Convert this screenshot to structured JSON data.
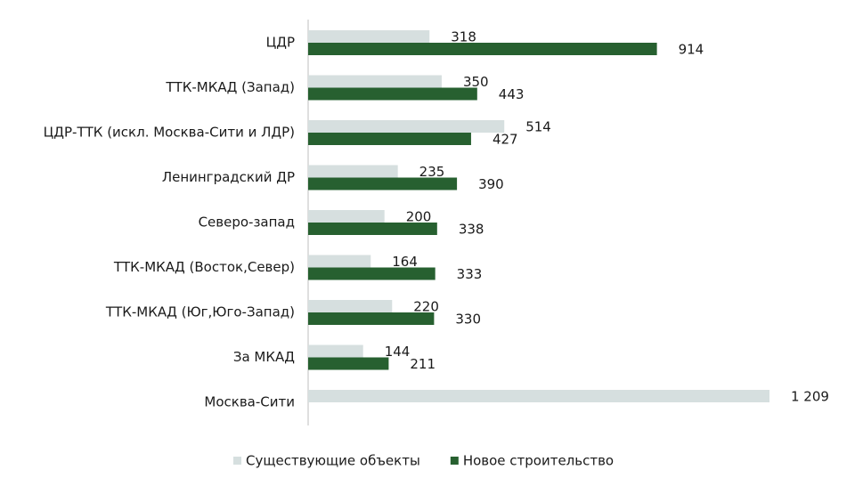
{
  "chart_data": {
    "type": "hbar",
    "categories": [
      "ЦДР",
      "ТТК-МКАД (Запад)",
      "ЦДР-ТТК (искл. Москва-Сити и ЛДР)",
      "Ленинградский ДР",
      "Северо-запад",
      "ТТК-МКАД (Восток,Север)",
      "ТТК-МКАД (Юг,Юго-Запад)",
      "За МКАД",
      "Москва-Сити"
    ],
    "series": [
      {
        "name": "Существующие объекты",
        "color": "#d6dfdf",
        "values": [
          318,
          350,
          514,
          235,
          200,
          164,
          220,
          144,
          1209
        ],
        "value_labels": [
          "318",
          "350",
          "514",
          "235",
          "200",
          "164",
          "220",
          "144",
          "1 209"
        ]
      },
      {
        "name": "Новое строительство",
        "color": "#276030",
        "values": [
          914,
          443,
          427,
          390,
          338,
          333,
          330,
          211,
          null
        ]
      }
    ],
    "legend": "bottom"
  }
}
